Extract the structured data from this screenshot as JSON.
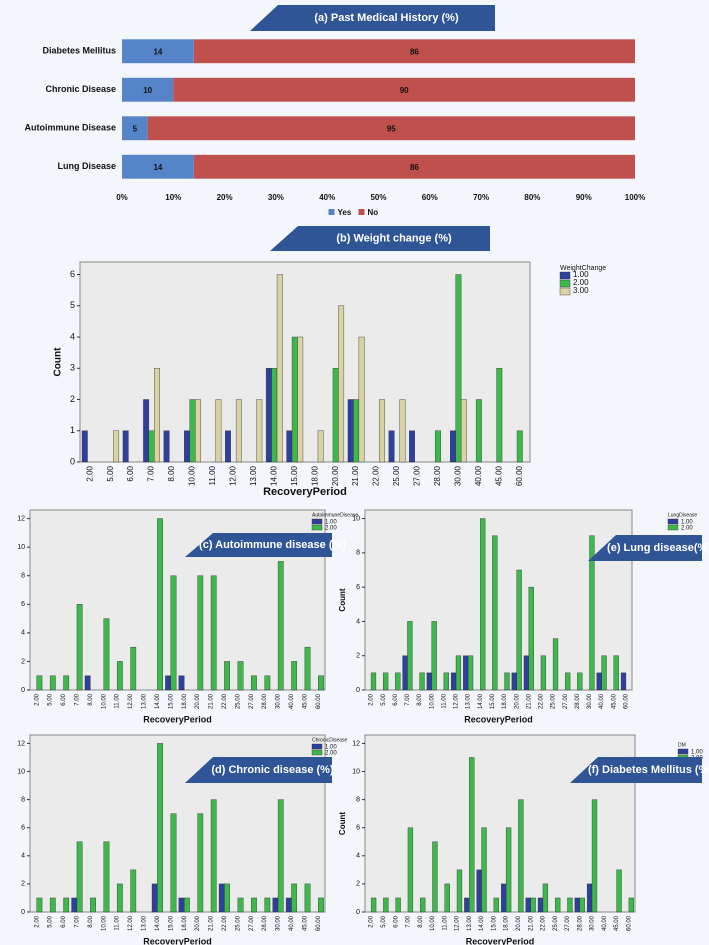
{
  "chart_data": [
    {
      "type": "bar",
      "orientation": "horizontal",
      "stacked": true,
      "title": "(a) Past Medical History (%)",
      "categories": [
        "Diabetes Mellitus",
        "Chronic Disease",
        "Autoimmune Disease",
        "Lung Disease"
      ],
      "series": [
        {
          "name": "Yes",
          "color": "#5585c8",
          "values": [
            14,
            10,
            5,
            14
          ]
        },
        {
          "name": "No",
          "color": "#c0504d",
          "values": [
            86,
            90,
            95,
            86
          ]
        }
      ],
      "xlim": [
        0,
        100
      ],
      "xticks": [
        {
          "value": 0,
          "label": "0%"
        },
        {
          "value": 10,
          "label": "10%"
        },
        {
          "value": 20,
          "label": "20%"
        },
        {
          "value": 30,
          "label": "30%"
        },
        {
          "value": 40,
          "label": "40%"
        },
        {
          "value": 50,
          "label": "50%"
        },
        {
          "value": 60,
          "label": "60%"
        },
        {
          "value": 70,
          "label": "70%"
        },
        {
          "value": 80,
          "label": "80%"
        },
        {
          "value": 90,
          "label": "90%"
        },
        {
          "value": 100,
          "label": "100%"
        }
      ],
      "legend": "bottom"
    },
    {
      "type": "bar",
      "title": "(b) Weight change (%)",
      "x_label": "RecoveryPeriod",
      "y_label": "Count",
      "legend_title": "WeightChange",
      "legend": "right",
      "categories": [
        "2.00",
        "5.00",
        "6.00",
        "7.00",
        "8.00",
        "10.00",
        "11.00",
        "12.00",
        "13.00",
        "14.00",
        "15.00",
        "18.00",
        "20.00",
        "21.00",
        "22.00",
        "25.00",
        "27.00",
        "28.00",
        "30.00",
        "40.00",
        "45.00",
        "60.00"
      ],
      "series": [
        {
          "name": "1.00",
          "color": "#2e3f9e",
          "values": [
            1,
            0,
            1,
            2,
            1,
            1,
            0,
            1,
            0,
            3,
            1,
            0,
            0,
            2,
            0,
            1,
            1,
            0,
            1,
            0,
            0,
            0
          ]
        },
        {
          "name": "2.00",
          "color": "#3cb94a",
          "values": [
            0,
            0,
            0,
            1,
            0,
            2,
            0,
            0,
            0,
            3,
            4,
            0,
            3,
            2,
            0,
            0,
            0,
            1,
            6,
            2,
            3,
            1
          ]
        },
        {
          "name": "3.00",
          "color": "#d9d3a4",
          "values": [
            0,
            1,
            0,
            3,
            0,
            2,
            2,
            2,
            2,
            6,
            4,
            1,
            5,
            4,
            2,
            2,
            0,
            0,
            2,
            0,
            0,
            0
          ]
        }
      ],
      "ylim": [
        0,
        6.4
      ],
      "yticks": [
        0,
        1,
        2,
        3,
        4,
        5,
        6
      ]
    },
    {
      "type": "bar",
      "title": "(c) Autoimmune disease (%)",
      "x_label": "RecoveryPeriod",
      "legend_title": "AutoimmuneDisease",
      "legend": "right",
      "categories": [
        "2.00",
        "5.00",
        "6.00",
        "7.00",
        "8.00",
        "10.00",
        "11.00",
        "12.00",
        "13.00",
        "14.00",
        "15.00",
        "18.00",
        "20.00",
        "21.00",
        "22.00",
        "25.00",
        "27.00",
        "28.00",
        "30.00",
        "40.00",
        "45.00",
        "60.00"
      ],
      "series": [
        {
          "name": "1.00",
          "color": "#2e3f9e",
          "values": [
            0,
            0,
            0,
            0,
            1,
            0,
            0,
            0,
            0,
            0,
            1,
            1,
            0,
            0,
            0,
            0,
            0,
            0,
            0,
            0,
            0,
            0
          ]
        },
        {
          "name": "2.00",
          "color": "#3cb94a",
          "values": [
            1,
            1,
            1,
            6,
            0,
            5,
            2,
            3,
            0,
            12,
            8,
            0,
            8,
            8,
            2,
            2,
            1,
            1,
            9,
            2,
            3,
            1
          ]
        }
      ],
      "ylim": [
        0,
        12.6
      ],
      "yticks": [
        0,
        2,
        4,
        6,
        8,
        10,
        12
      ]
    },
    {
      "type": "bar",
      "title": "(e) Lung disease(%)",
      "x_label": "RecoveryPeriod",
      "y_label": "Count",
      "legend_title": "LungDisease",
      "legend": "right",
      "categories": [
        "2.00",
        "5.00",
        "6.00",
        "7.00",
        "8.00",
        "10.00",
        "11.00",
        "12.00",
        "13.00",
        "14.00",
        "15.00",
        "18.00",
        "20.00",
        "21.00",
        "22.00",
        "25.00",
        "27.00",
        "28.00",
        "30.00",
        "40.00",
        "45.00",
        "60.00"
      ],
      "series": [
        {
          "name": "1.00",
          "color": "#2e3f9e",
          "values": [
            0,
            0,
            0,
            2,
            0,
            1,
            0,
            1,
            2,
            0,
            0,
            0,
            1,
            2,
            0,
            0,
            0,
            0,
            0,
            1,
            0,
            1
          ]
        },
        {
          "name": "2.00",
          "color": "#3cb94a",
          "values": [
            1,
            1,
            1,
            4,
            1,
            4,
            1,
            2,
            2,
            10,
            9,
            1,
            7,
            6,
            2,
            3,
            1,
            1,
            9,
            2,
            2,
            0
          ]
        }
      ],
      "ylim": [
        0,
        10.5
      ],
      "yticks": [
        0,
        2,
        4,
        6,
        8,
        10
      ]
    },
    {
      "type": "bar",
      "title": "(d) Chronic disease (%)",
      "x_label": "RecoveryPeriod",
      "legend_title": "ChronicDisease",
      "legend": "right",
      "categories": [
        "2.00",
        "5.00",
        "6.00",
        "7.00",
        "8.00",
        "10.00",
        "11.00",
        "12.00",
        "13.00",
        "14.00",
        "15.00",
        "18.00",
        "20.00",
        "21.00",
        "22.00",
        "25.00",
        "27.00",
        "28.00",
        "30.00",
        "40.00",
        "45.00",
        "60.00"
      ],
      "series": [
        {
          "name": "1.00",
          "color": "#2e3f9e",
          "values": [
            0,
            0,
            0,
            1,
            0,
            0,
            0,
            0,
            0,
            2,
            0,
            1,
            0,
            0,
            2,
            0,
            0,
            0,
            1,
            1,
            0,
            0
          ]
        },
        {
          "name": "2.00",
          "color": "#3cb94a",
          "values": [
            1,
            1,
            1,
            5,
            1,
            5,
            2,
            3,
            0,
            12,
            7,
            1,
            7,
            8,
            2,
            1,
            1,
            1,
            8,
            2,
            2,
            1
          ]
        }
      ],
      "ylim": [
        0,
        12.6
      ],
      "yticks": [
        0,
        2,
        4,
        6,
        8,
        10,
        12
      ]
    },
    {
      "type": "bar",
      "title": "(f) Diabetes Mellitus (%)",
      "x_label": "RecoveryPeriod",
      "y_label": "Count",
      "legend_title": "DM",
      "legend": "right",
      "categories": [
        "2.00",
        "5.00",
        "6.00",
        "7.00",
        "8.00",
        "10.00",
        "11.00",
        "12.00",
        "13.00",
        "14.00",
        "15.00",
        "18.00",
        "20.00",
        "21.00",
        "22.00",
        "25.00",
        "27.00",
        "28.00",
        "30.00",
        "40.00",
        "45.00",
        "60.00"
      ],
      "series": [
        {
          "name": "1.00",
          "color": "#2e3f9e",
          "values": [
            0,
            0,
            0,
            0,
            0,
            0,
            0,
            0,
            1,
            3,
            0,
            2,
            0,
            1,
            1,
            0,
            0,
            1,
            2,
            0,
            0,
            0
          ]
        },
        {
          "name": "2.00",
          "color": "#3cb94a",
          "values": [
            1,
            1,
            1,
            6,
            1,
            5,
            2,
            3,
            11,
            6,
            1,
            6,
            8,
            1,
            2,
            1,
            1,
            1,
            8,
            0,
            3,
            1
          ]
        }
      ],
      "ylim": [
        0,
        12.6
      ],
      "yticks": [
        0,
        2,
        4,
        6,
        8,
        10,
        12
      ]
    }
  ]
}
